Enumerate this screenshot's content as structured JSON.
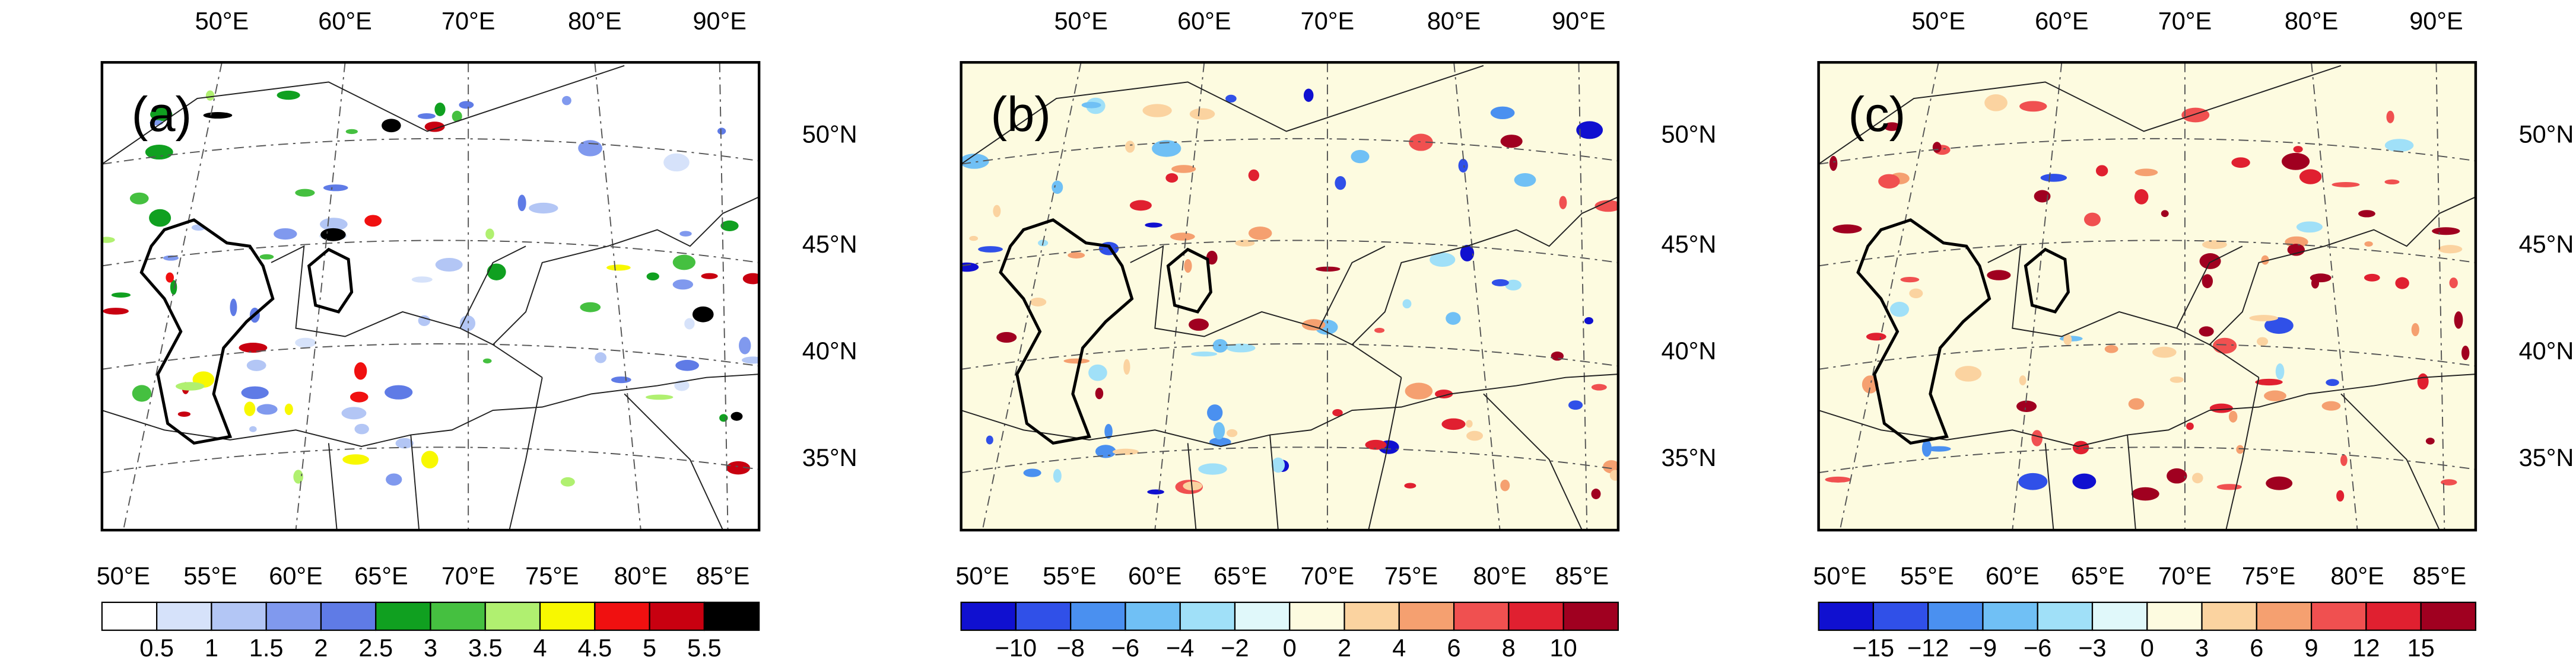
{
  "panels": [
    {
      "label": "(a)",
      "top_lon_labels": [
        "50°E",
        "60°E",
        "70°E",
        "80°E",
        "90°E"
      ],
      "right_lat_labels": [
        "50°N",
        "45°N",
        "40°N",
        "35°N"
      ],
      "bottom_lon_labels": [
        "50°E",
        "55°E",
        "60°E",
        "65°E",
        "70°E",
        "75°E",
        "80°E",
        "85°E"
      ],
      "colorbar": {
        "colors": [
          "#ffffff",
          "#d6e2fa",
          "#b3c6f5",
          "#8099ee",
          "#5f7be6",
          "#10a020",
          "#45c040",
          "#b0f070",
          "#f8f800",
          "#f01010",
          "#c80010",
          "#000000"
        ],
        "labels": [
          "0.5",
          "1",
          "1.5",
          "2",
          "2.5",
          "3",
          "3.5",
          "4",
          "4.5",
          "5",
          "5.5"
        ]
      }
    },
    {
      "label": "(b)",
      "top_lon_labels": [
        "50°E",
        "60°E",
        "70°E",
        "80°E",
        "90°E"
      ],
      "right_lat_labels": [
        "50°N",
        "45°N",
        "40°N",
        "35°N"
      ],
      "bottom_lon_labels": [
        "50°E",
        "55°E",
        "60°E",
        "65°E",
        "70°E",
        "75°E",
        "80°E",
        "85°E"
      ],
      "colorbar": {
        "colors": [
          "#1010d0",
          "#3050e8",
          "#4a90f0",
          "#70c0f5",
          "#a0e0f8",
          "#e0f8fa",
          "#fdfbe0",
          "#fbd3a0",
          "#f5a070",
          "#f05050",
          "#e02030",
          "#a00020"
        ],
        "labels": [
          "−10",
          "−8",
          "−6",
          "−4",
          "−2",
          "0",
          "2",
          "4",
          "6",
          "8",
          "10"
        ]
      }
    },
    {
      "label": "(c)",
      "top_lon_labels": [
        "50°E",
        "60°E",
        "70°E",
        "80°E",
        "90°E"
      ],
      "right_lat_labels": [
        "50°N",
        "45°N",
        "40°N",
        "35°N"
      ],
      "bottom_lon_labels": [
        "50°E",
        "55°E",
        "60°E",
        "65°E",
        "70°E",
        "75°E",
        "80°E",
        "85°E"
      ],
      "colorbar": {
        "colors": [
          "#1010d0",
          "#3050e8",
          "#4a90f0",
          "#70c0f5",
          "#a0e0f8",
          "#e0f8fa",
          "#fdfbe0",
          "#fbd3a0",
          "#f5a070",
          "#f05050",
          "#e02030",
          "#a00020"
        ],
        "labels": [
          "−15",
          "−12",
          "−9",
          "−6",
          "−3",
          "0",
          "3",
          "6",
          "9",
          "12",
          "15"
        ]
      }
    }
  ]
}
